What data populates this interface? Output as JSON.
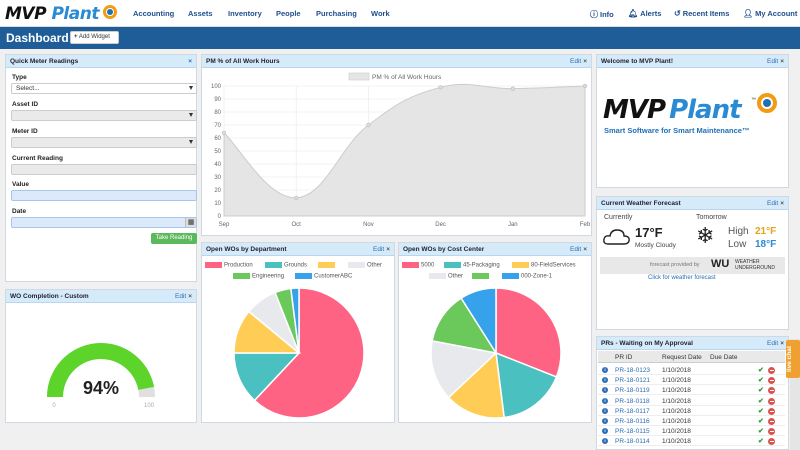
{
  "app": {
    "logo_mvp": "MVP",
    "logo_plant": "Plant",
    "brand_color": "#1f5d99"
  },
  "nav": {
    "items": [
      {
        "label": "Accounting"
      },
      {
        "label": "Assets"
      },
      {
        "label": "Inventory"
      },
      {
        "label": "People"
      },
      {
        "label": "Purchasing"
      },
      {
        "label": "Work"
      }
    ],
    "right": [
      {
        "label": "Info",
        "icon": "info-icon"
      },
      {
        "label": "Alerts",
        "icon": "bell-icon"
      },
      {
        "label": "Recent Items",
        "icon": "history-icon"
      },
      {
        "label": "My Account",
        "icon": "user-icon"
      }
    ]
  },
  "dashboard": {
    "title": "Dashboard",
    "add_widget": "Add Widget"
  },
  "quick_meter": {
    "title": "Quick Meter Readings",
    "close": "×",
    "type_label": "Type",
    "type_value": "Select...",
    "asset_label": "Asset ID",
    "meter_label": "Meter ID",
    "current_label": "Current Reading",
    "value_label": "Value",
    "date_label": "Date",
    "take_button": "Take Reading"
  },
  "wo_completion": {
    "title": "WO Completion - Custom",
    "edit": "Edit",
    "close": "×",
    "value": "94%",
    "min_label": "0",
    "max_label": "100",
    "fraction": 0.94
  },
  "pm_chart": {
    "title": "PM % of All Work Hours",
    "edit": "Edit",
    "close": "×",
    "chart_data": {
      "type": "area",
      "series": [
        {
          "name": "PM % of All Work Hours",
          "values": [
            64,
            14,
            70,
            99,
            98,
            100
          ]
        }
      ],
      "categories": [
        "Sep",
        "Oct",
        "Nov",
        "Dec",
        "Jan",
        "Feb"
      ],
      "ylim": [
        0,
        100
      ],
      "yticks": [
        0,
        10,
        20,
        30,
        40,
        50,
        60,
        70,
        80,
        90,
        100
      ],
      "legend": "top-center",
      "grid": true,
      "colors": {
        "fill": "#e5e5e5",
        "line": "#cccccc"
      }
    }
  },
  "open_wos_dept": {
    "title": "Open WOs by Department",
    "edit": "Edit",
    "close": "×",
    "chart_data": {
      "type": "pie",
      "labels": [
        "Production",
        "Grounds",
        "",
        "Other",
        "Engineering",
        "CustomerABC"
      ],
      "values": [
        62,
        13,
        11,
        8,
        4,
        2
      ],
      "colors": [
        "#ff6384",
        "#4bc0c0",
        "#ffcd56",
        "#e7e9ed",
        "#6bc85b",
        "#36a2eb"
      ]
    }
  },
  "open_wos_cc": {
    "title": "Open WOs by Cost Center",
    "edit": "Edit",
    "close": "×",
    "chart_data": {
      "type": "pie",
      "labels": [
        "5000",
        "45-Packaging",
        "80-FieldServices",
        "Other",
        "",
        "000-Zone-1"
      ],
      "values": [
        31,
        17,
        15,
        15,
        13,
        9
      ],
      "colors": [
        "#ff6384",
        "#4bc0c0",
        "#ffcd56",
        "#e7e9ed",
        "#6bc85b",
        "#36a2eb"
      ]
    }
  },
  "welcome": {
    "title": "Welcome to MVP Plant!",
    "edit": "Edit",
    "close": "×",
    "logo_mvp": "MVP",
    "logo_plant": "Plant",
    "tm": "™",
    "tagline": "Smart Software for Smart Maintenance™"
  },
  "weather": {
    "title": "Current Weather Forecast",
    "edit": "Edit",
    "close": "×",
    "currently_label": "Currently",
    "tomorrow_label": "Tomorrow",
    "current_temp": "17°F",
    "current_desc": "Mostly Cloudy",
    "high_label": "High",
    "high_value": "21°F",
    "low_label": "Low",
    "low_value": "18°F",
    "provided_by": "forecast provided by",
    "wu_logo": "WU",
    "wu_brand_1": "WEATHER",
    "wu_brand_2": "UNDERGROUND",
    "link": "Click for weather forecast"
  },
  "prs": {
    "title": "PRs - Waiting on My Approval",
    "edit": "Edit",
    "close": "×",
    "headers": {
      "pr_id": "PR ID",
      "request_date": "Request Date",
      "due_date": "Due Date"
    },
    "rows": [
      {
        "id": "PR-18-0123",
        "date": "1/10/2018",
        "due": ""
      },
      {
        "id": "PR-18-0121",
        "date": "1/10/2018",
        "due": ""
      },
      {
        "id": "PR-18-0119",
        "date": "1/10/2018",
        "due": ""
      },
      {
        "id": "PR-18-0118",
        "date": "1/10/2018",
        "due": ""
      },
      {
        "id": "PR-18-0117",
        "date": "1/10/2018",
        "due": ""
      },
      {
        "id": "PR-18-0116",
        "date": "1/10/2018",
        "due": ""
      },
      {
        "id": "PR-18-0115",
        "date": "1/10/2018",
        "due": ""
      },
      {
        "id": "PR-18-0114",
        "date": "1/10/2018",
        "due": ""
      }
    ]
  },
  "live_chat": "live chat"
}
